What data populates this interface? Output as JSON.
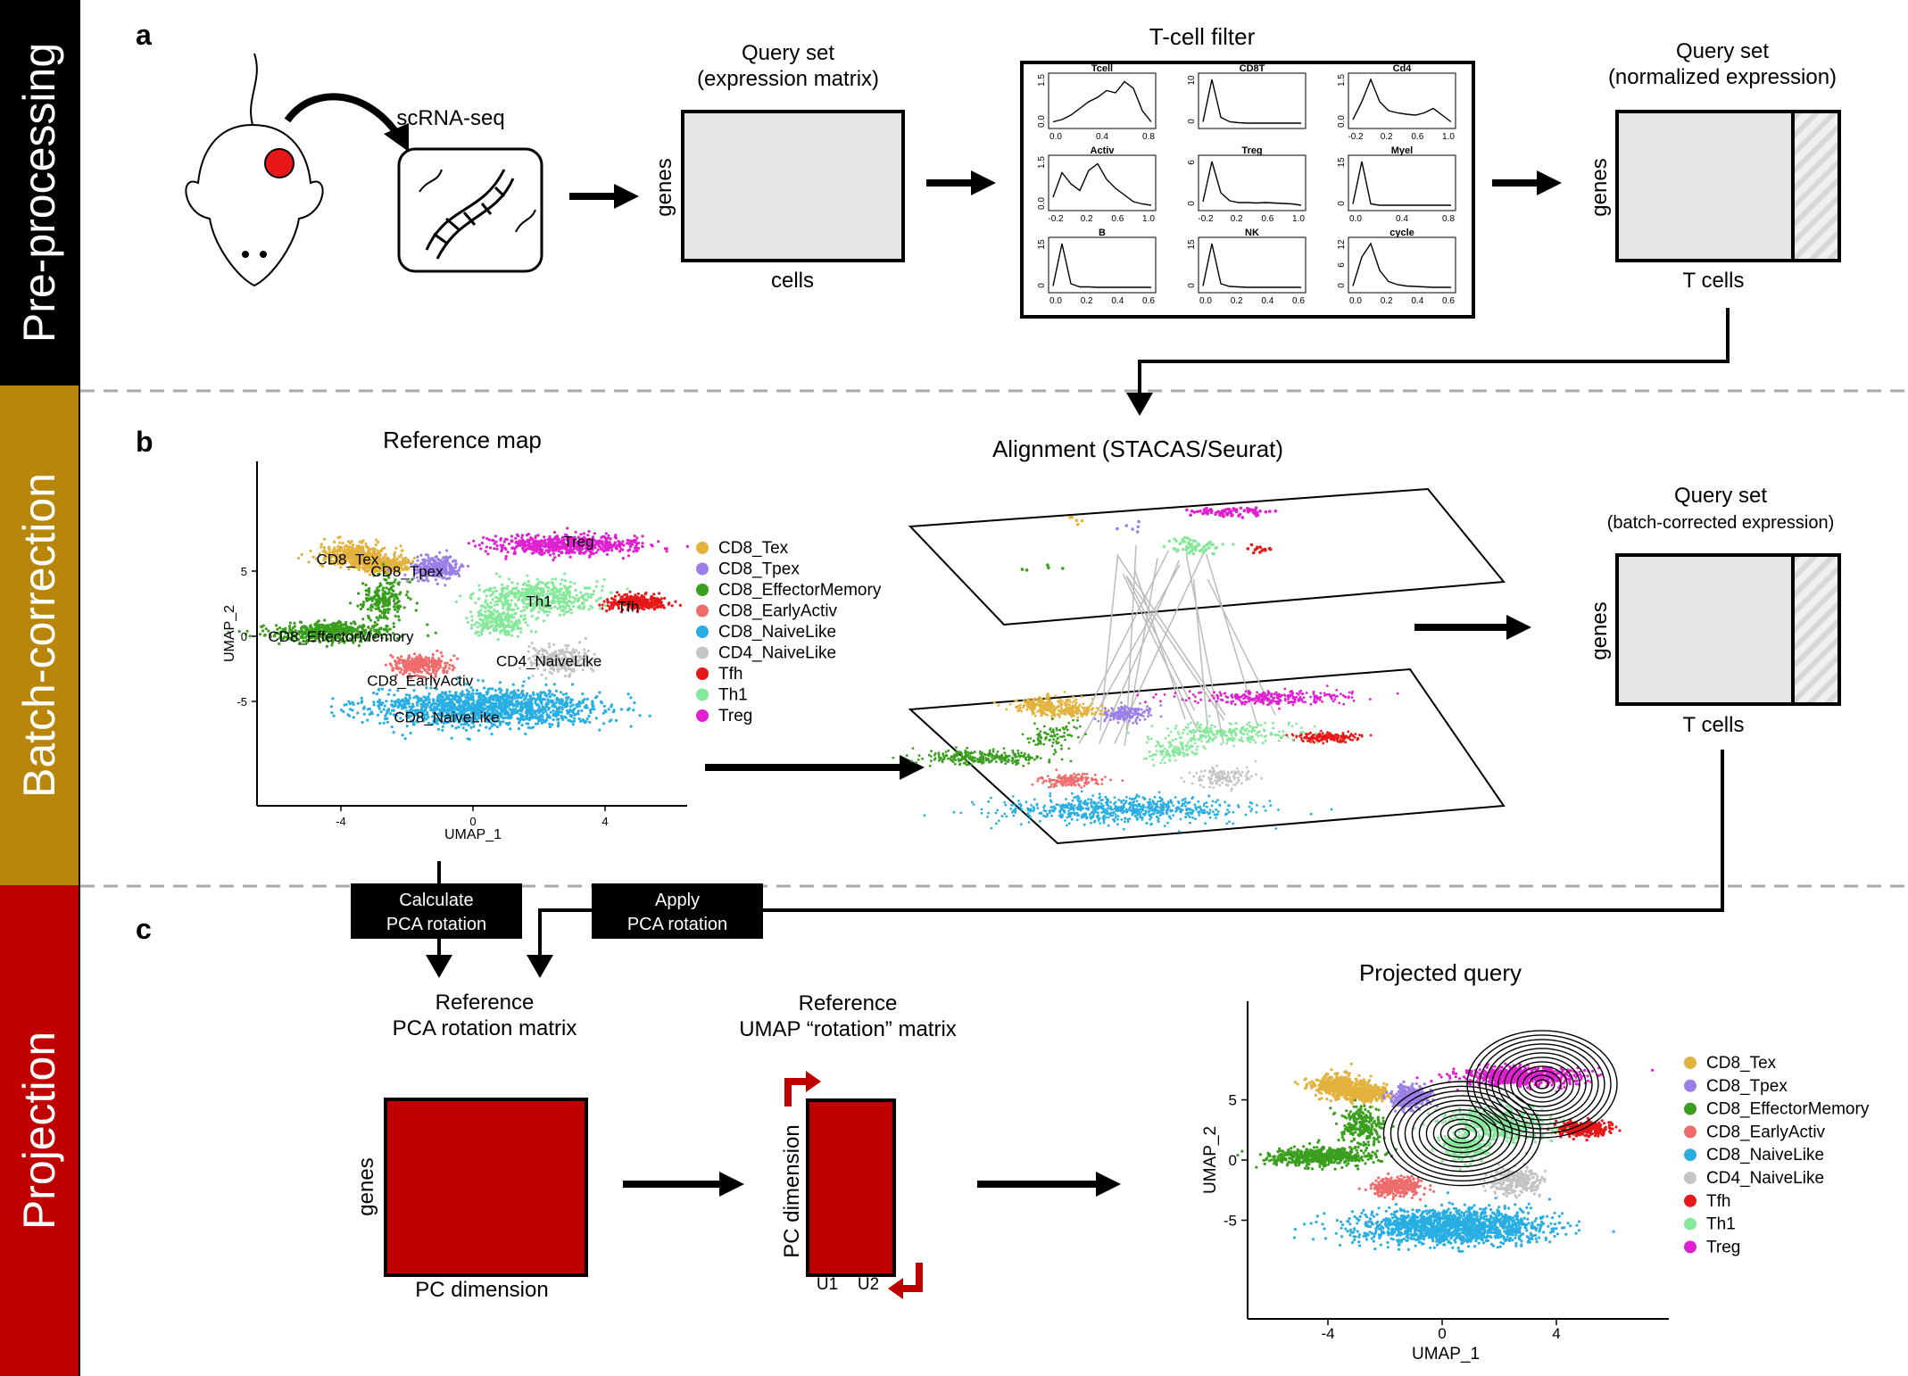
{
  "sidebar": {
    "bands": [
      {
        "label": "Pre-processing",
        "color": "#000000"
      },
      {
        "label": "Batch-correction",
        "color": "#b8860b"
      },
      {
        "label": "Projection",
        "color": "#c00000"
      }
    ]
  },
  "panels": {
    "a": "a",
    "b": "b",
    "c": "c"
  },
  "panel_a": {
    "scrnaseq_label": "scRNA-seq",
    "query_raw": {
      "title_line1": "Query set",
      "title_line2": "(expression matrix)",
      "row_label": "genes",
      "col_label": "cells"
    },
    "filter": {
      "title": "T-cell filter",
      "subplots": [
        {
          "name": "Tcell",
          "yticks": [
            "0.0",
            "1.5"
          ],
          "xticks": [
            "0.0",
            "0.4",
            "0.8"
          ]
        },
        {
          "name": "CD8T",
          "yticks": [
            "0",
            "10"
          ],
          "xticks": []
        },
        {
          "name": "Cd4",
          "yticks": [
            "0.0",
            "1.5"
          ],
          "xticks": [
            "-0.2",
            "0.2",
            "0.6",
            "1.0"
          ]
        },
        {
          "name": "Activ",
          "yticks": [
            "0.0",
            "1.5"
          ],
          "xticks": [
            "-0.2",
            "0.2",
            "0.6",
            "1.0"
          ]
        },
        {
          "name": "Treg",
          "yticks": [
            "0",
            "6"
          ],
          "xticks": [
            "-0.2",
            "0.2",
            "0.6",
            "1.0"
          ]
        },
        {
          "name": "Myel",
          "yticks": [
            "0",
            "15"
          ],
          "xticks": [
            "0.0",
            "0.4",
            "0.8"
          ]
        },
        {
          "name": "B",
          "yticks": [
            "0",
            "15"
          ],
          "xticks": [
            "0.0",
            "0.2",
            "0.4",
            "0.6"
          ]
        },
        {
          "name": "NK",
          "yticks": [
            "0",
            "15"
          ],
          "xticks": [
            "0.0",
            "0.2",
            "0.4",
            "0.6"
          ]
        },
        {
          "name": "cycle",
          "yticks": [
            "0",
            "6",
            "12"
          ],
          "xticks": [
            "0.0",
            "0.2",
            "0.4",
            "0.6"
          ]
        }
      ]
    },
    "query_norm": {
      "title_line1": "Query set",
      "title_line2": "(normalized expression)",
      "row_label": "genes",
      "col_label": "T cells"
    }
  },
  "panel_b": {
    "reference_title": "Reference map",
    "alignment_title": "Alignment (STACAS/Seurat)",
    "umap": {
      "xlabel": "UMAP_1",
      "ylabel": "UMAP_2",
      "xticks": [
        "-4",
        "0",
        "4"
      ],
      "yticks": [
        "5",
        "0",
        "-5"
      ]
    },
    "clusters": [
      {
        "name": "CD8_Tex",
        "color": "#e3b23c"
      },
      {
        "name": "CD8_Tpex",
        "color": "#9b7fe8"
      },
      {
        "name": "CD8_EffectorMemory",
        "color": "#3a9e1f"
      },
      {
        "name": "CD8_EarlyActiv",
        "color": "#ef6c6c"
      },
      {
        "name": "CD8_NaiveLike",
        "color": "#29aee3"
      },
      {
        "name": "CD4_NaiveLike",
        "color": "#c4c4c4"
      },
      {
        "name": "Tfh",
        "color": "#e81818"
      },
      {
        "name": "Th1",
        "color": "#86e89a"
      },
      {
        "name": "Treg",
        "color": "#e020d0"
      }
    ],
    "map_labels": {
      "CD8_Tex": "CD8_Tex",
      "CD8_Tpex": "CD8_Tpex",
      "Treg": "Treg",
      "Th1": "Th1",
      "Tfh": "Tfh",
      "CD8_EffectorMemory": "CD8_EffectorMemory",
      "CD4_NaiveLike": "CD4_NaiveLike",
      "CD8_EarlyActiv": "CD8_EarlyActiv",
      "CD8_NaiveLike": "CD8_NaiveLike"
    },
    "query_corrected": {
      "title_line1": "Query set",
      "title_line2": "(batch-corrected expression)",
      "row_label": "genes",
      "col_label": "T cells"
    }
  },
  "panel_c": {
    "calc_box": {
      "line1": "Calculate",
      "line2": "PCA rotation"
    },
    "apply_box": {
      "line1": "Apply",
      "line2": "PCA rotation"
    },
    "pca_title": {
      "line1": "Reference",
      "line2": "PCA rotation matrix"
    },
    "umap_title": {
      "line1": "Reference",
      "line2": "UMAP “rotation” matrix"
    },
    "pca_matrix": {
      "row_label": "genes",
      "col_label": "PC dimension",
      "color": "#c00000"
    },
    "umap_matrix": {
      "row_label": "PC dimension",
      "col1": "U1",
      "col2": "U2",
      "color": "#c00000"
    },
    "projected_title": "Projected query"
  }
}
